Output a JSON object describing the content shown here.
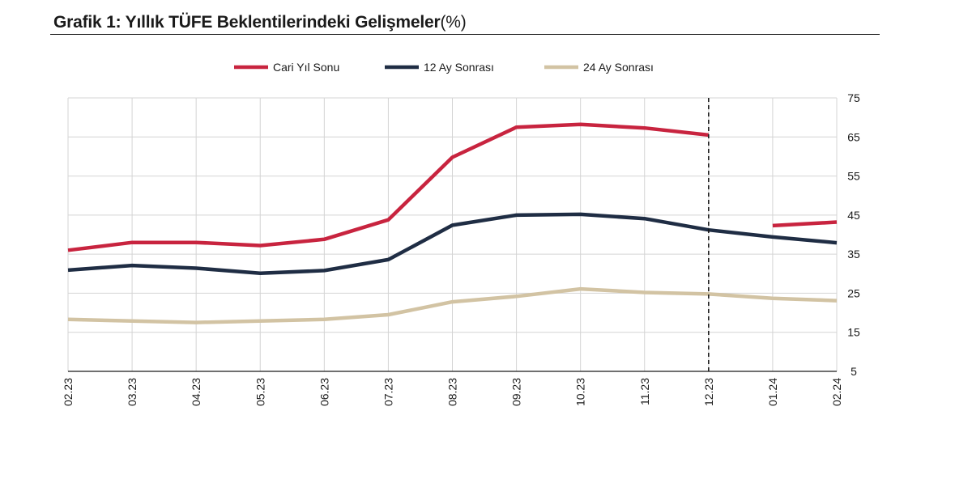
{
  "header": {
    "title": "Grafik 1: Yıllık TÜFE Beklentilerindeki Gelişmeler",
    "unit": "(%)"
  },
  "chart_data": {
    "type": "line",
    "title": "Grafik 1: Yıllık TÜFE Beklentilerindeki Gelişmeler(%)",
    "categories": [
      "02.23",
      "03.23",
      "04.23",
      "05.23",
      "06.23",
      "07.23",
      "08.23",
      "09.23",
      "10.23",
      "11.23",
      "12.23",
      "01.24",
      "02.24"
    ],
    "ylim": [
      5,
      75
    ],
    "yticks": [
      5,
      15,
      25,
      35,
      45,
      55,
      65,
      75
    ],
    "y_axis_position": "right",
    "grid": true,
    "legend_position": "top",
    "vertical_marker": {
      "category": "12.23",
      "style": "dashed"
    },
    "series": [
      {
        "name": "Cari Yıl Sonu",
        "color": "#c8243f",
        "values": [
          36.0,
          38.0,
          38.0,
          37.2,
          38.8,
          43.8,
          59.8,
          67.5,
          68.2,
          67.3,
          65.5,
          null,
          null
        ],
        "segments": [
          [
            36.0,
            38.0,
            38.0,
            37.2,
            38.8,
            43.8,
            59.8,
            67.5,
            68.2,
            67.3,
            65.5
          ],
          [
            42.3,
            43.2
          ]
        ],
        "segment_start": [
          0,
          11
        ]
      },
      {
        "name": "12 Ay Sonrası",
        "color": "#1f2d44",
        "values": [
          30.9,
          32.1,
          31.4,
          30.1,
          30.8,
          33.6,
          42.4,
          45.0,
          45.2,
          44.1,
          41.2,
          39.4,
          37.9
        ]
      },
      {
        "name": "24 Ay Sonrası",
        "color": "#d2c3a3",
        "values": [
          18.3,
          17.9,
          17.5,
          17.9,
          18.3,
          19.5,
          22.8,
          24.2,
          26.1,
          25.2,
          24.8,
          23.7,
          23.1
        ]
      }
    ]
  }
}
